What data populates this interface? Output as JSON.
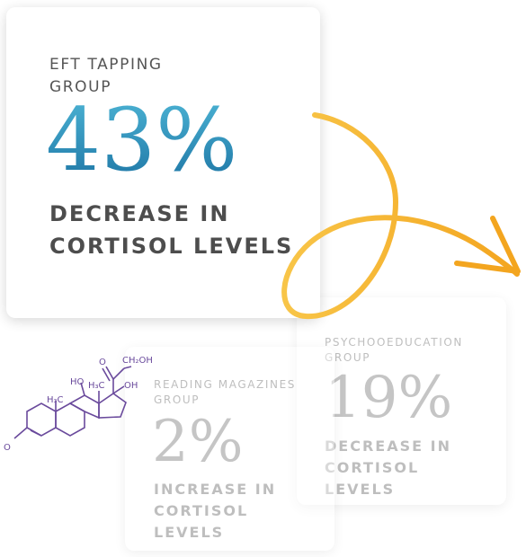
{
  "cards": {
    "eft": {
      "label": "EFT TAPPING GROUP",
      "value": "43%",
      "desc": "DECREASE IN CORTISOL LEVELS"
    },
    "psychoeducation": {
      "label": "PSYCHOOEDUCATION GROUP",
      "value": "19%",
      "desc": "DECREASE IN CORTISOL LEVELS"
    },
    "magazines": {
      "label": "READING MAGAZINES GROUP",
      "value": "2%",
      "desc": "INCREASE IN CORTISOL LEVELS"
    }
  },
  "molecule": {
    "labels": {
      "ho": "HO",
      "h3c_left": "H₃C",
      "h3c_top": "H₃C",
      "ch2oh": "CH₂OH",
      "oh": "OH",
      "o_carbonyl": "O",
      "o_ketone": "O"
    }
  },
  "colors": {
    "primary_gradient_start": "#4bb2d3",
    "primary_gradient_end": "#1f77a6",
    "arrow": "#f5b42e",
    "molecule": "#6a4a9c"
  },
  "icons": {
    "arrow": "curly-arrow-icon",
    "molecule": "cortisol-molecule-icon"
  }
}
